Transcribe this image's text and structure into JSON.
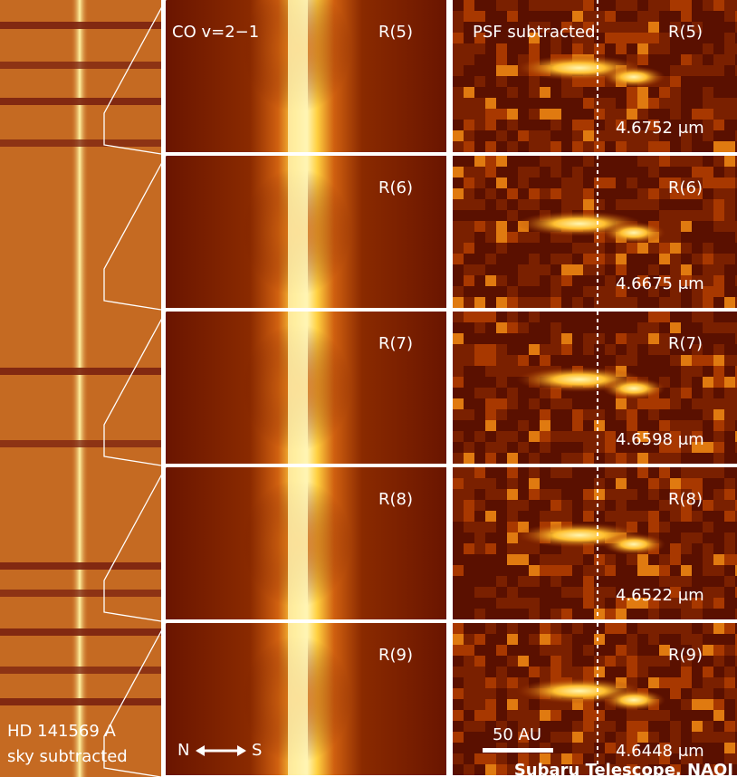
{
  "left_panel": {
    "labels": [
      "HD 141569 A",
      "sky subtracted"
    ]
  },
  "middle_column": {
    "title": "CO v=2−1",
    "rows": [
      "R(5)",
      "R(6)",
      "R(7)",
      "R(8)",
      "R(9)"
    ],
    "compass": {
      "left": "N",
      "right": "S"
    }
  },
  "right_column": {
    "title": "PSF subtracted",
    "rows": [
      {
        "line": "R(5)",
        "wavelength": "4.6752 μm"
      },
      {
        "line": "R(6)",
        "wavelength": "4.6675 μm"
      },
      {
        "line": "R(7)",
        "wavelength": "4.6598 μm"
      },
      {
        "line": "R(8)",
        "wavelength": "4.6522 μm"
      },
      {
        "line": "R(9)",
        "wavelength": "4.6448 μm"
      }
    ],
    "scale_bar": "50 AU"
  },
  "credit": "Subaru Telescope, NAOJ"
}
